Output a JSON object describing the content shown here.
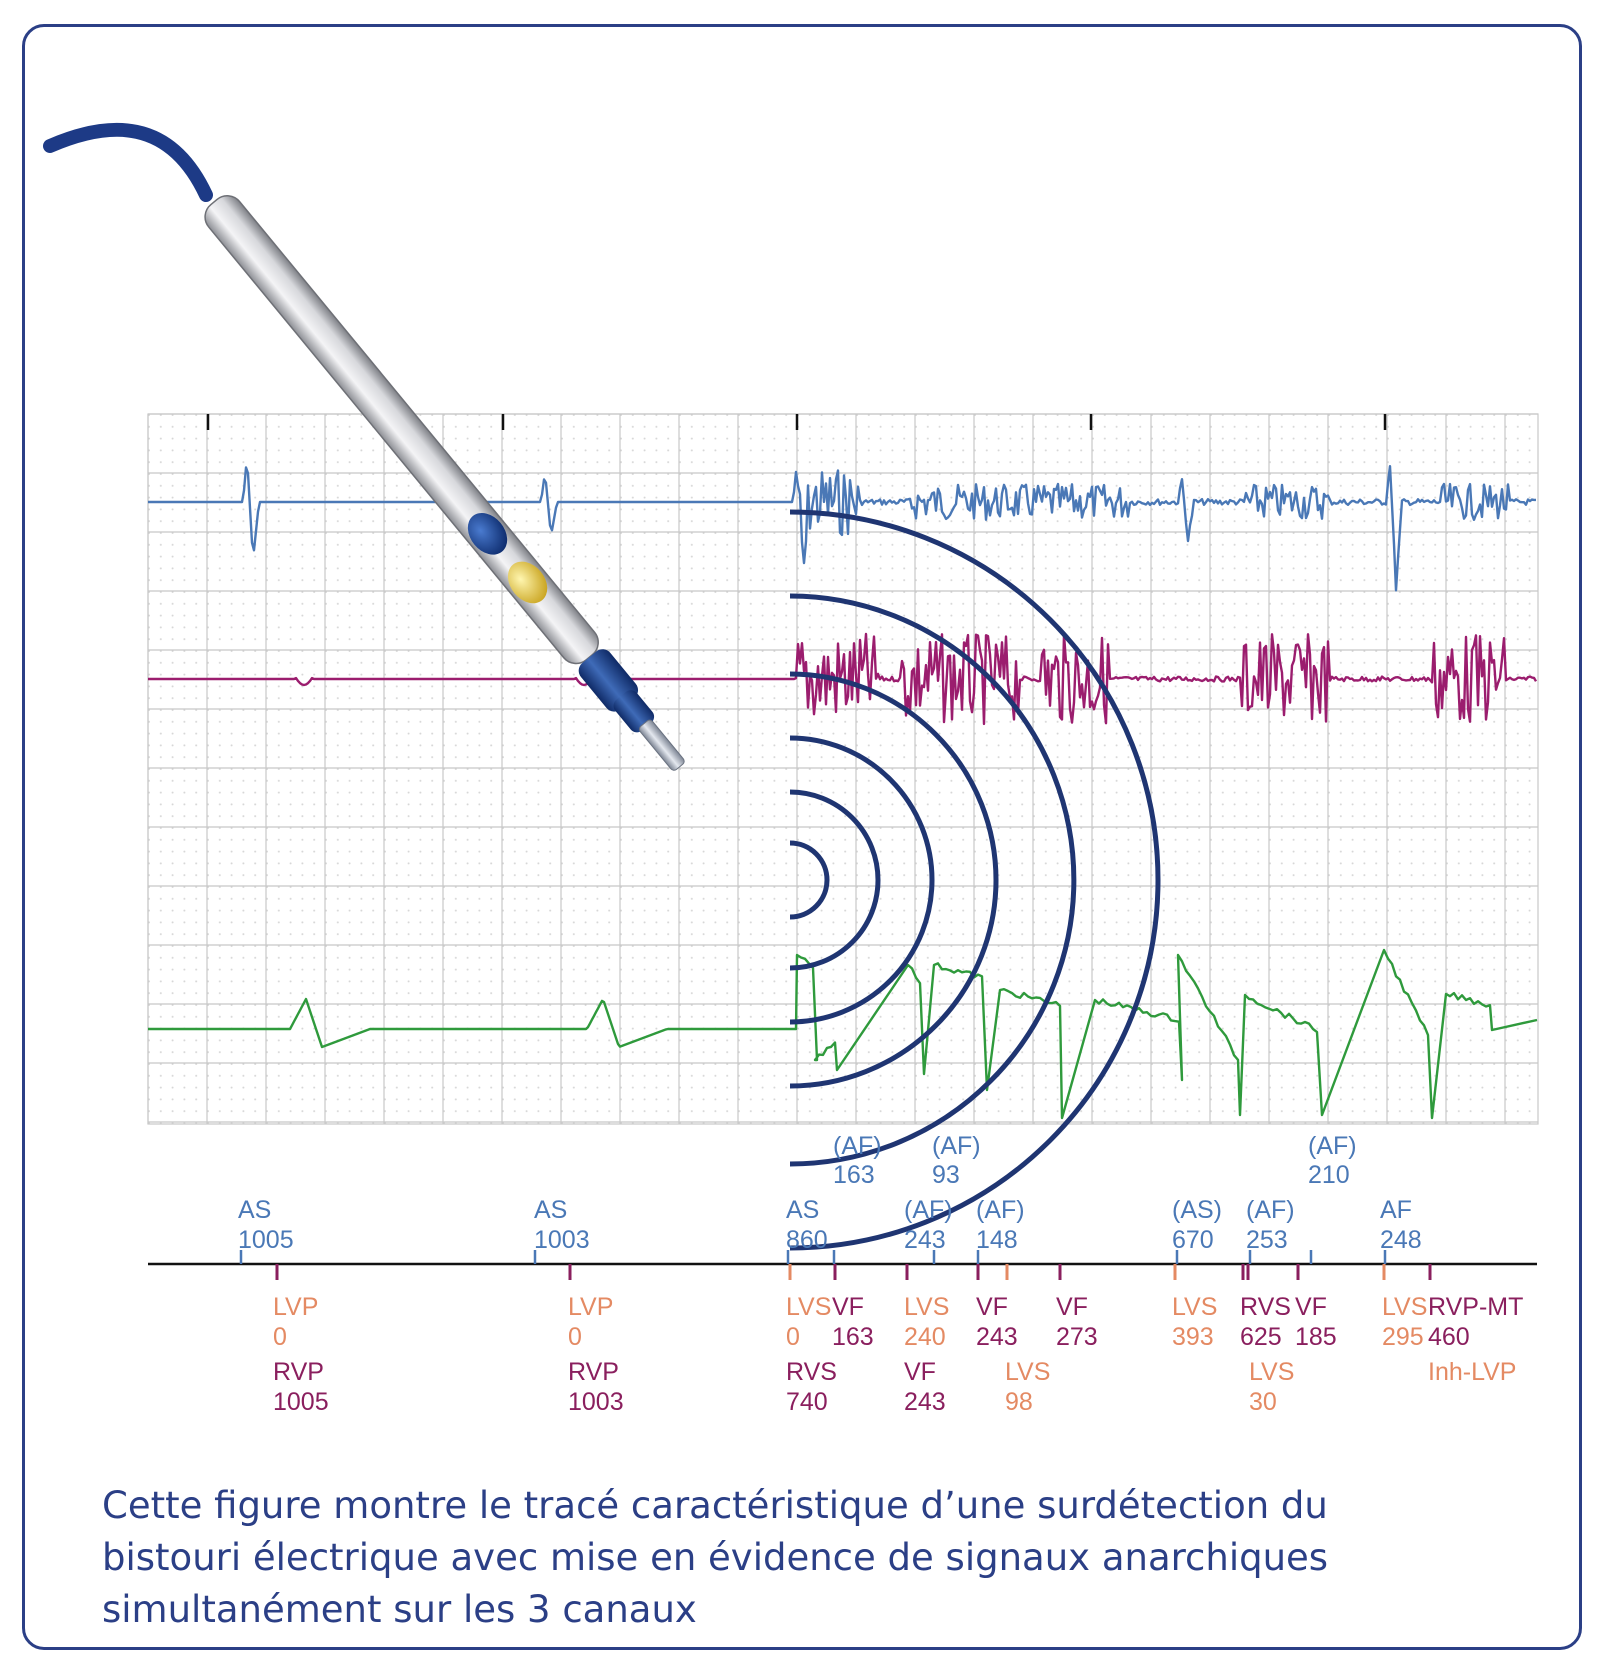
{
  "colors": {
    "frame": "#2b3f86",
    "channel_atrial": "#4a78b6",
    "channel_rv": "#9b1d6e",
    "channel_lv": "#2f9a3c",
    "marker_lv": "#e48a63",
    "marker_rv": "#8a1f5e",
    "marker_atrial": "#4a78b6",
    "waves": "#1f3572",
    "grid": "#c8c8c8"
  },
  "icons": [
    "electrosurgical-pen-icon",
    "radio-waves-icon"
  ],
  "atrial_markers_upper": [
    {
      "label": "(AF)",
      "value": "163"
    },
    {
      "label": "(AF)",
      "value": "93"
    },
    {
      "label": "(AF)",
      "value": "210"
    }
  ],
  "atrial_markers": [
    {
      "label": "AS",
      "value": "1005"
    },
    {
      "label": "AS",
      "value": "1003"
    },
    {
      "label": "AS",
      "value": "860"
    },
    {
      "label": "(AF)",
      "value": "243"
    },
    {
      "label": "(AF)",
      "value": "148"
    },
    {
      "label": "(AS)",
      "value": "670"
    },
    {
      "label": "(AF)",
      "value": "253"
    },
    {
      "label": "AF",
      "value": "248"
    }
  ],
  "ventricular_markers_row1": [
    {
      "label": "LVP",
      "value": "0"
    },
    {
      "label": "LVP",
      "value": "0"
    },
    {
      "label": "LVS",
      "value": "0"
    },
    {
      "label": "VF",
      "value": "163"
    },
    {
      "label": "LVS",
      "value": "240"
    },
    {
      "label": "VF",
      "value": "243"
    },
    {
      "label": "VF",
      "value": "273"
    },
    {
      "label": "LVS",
      "value": "393"
    },
    {
      "label": "RVS",
      "value": "625"
    },
    {
      "label": "VF",
      "value": "185"
    },
    {
      "label": "LVS",
      "value": "295"
    },
    {
      "label": "RVP-MT",
      "value": "460"
    }
  ],
  "ventricular_markers_row2": [
    {
      "label": "RVP",
      "value": "1005"
    },
    {
      "label": "RVP",
      "value": "1003"
    },
    {
      "label": "RVS",
      "value": "740"
    },
    {
      "label": "VF",
      "value": "243"
    },
    {
      "label": "LVS",
      "value": "98"
    },
    {
      "label": "LVS",
      "value": "30"
    },
    {
      "label": "Inh-LVP",
      "value": ""
    }
  ],
  "caption": [
    "Cette figure montre le tracé caractéristique d’une surdétection du",
    "bistouri électrique avec mise en évidence de signaux anarchiques",
    "simultanément sur les 3 canaux"
  ]
}
